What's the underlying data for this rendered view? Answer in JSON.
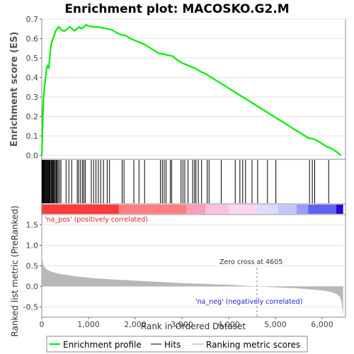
{
  "chart_data": {
    "type": "line",
    "title": "Enrichment plot: MACOSKO.G2.M",
    "xlabel": "Rank in Ordered Dataset",
    "xlim": [
      0,
      6500
    ],
    "x_ticks": [
      "0",
      "1,000",
      "2,000",
      "3,000",
      "4,000",
      "5,000",
      "6,000"
    ],
    "es_panel": {
      "ylabel": "Enrichment score (ES)",
      "ylim": [
        -0.02,
        0.7
      ],
      "y_ticks": [
        "0.0",
        "0.1",
        "0.2",
        "0.3",
        "0.4",
        "0.5",
        "0.6",
        "0.7"
      ],
      "series": [
        {
          "name": "Enrichment profile",
          "color": "#00ee00",
          "x": [
            0,
            20,
            40,
            60,
            80,
            100,
            120,
            150,
            170,
            190,
            210,
            240,
            270,
            300,
            330,
            360,
            400,
            450,
            500,
            550,
            600,
            650,
            700,
            750,
            800,
            850,
            900,
            950,
            1000,
            1100,
            1200,
            1300,
            1400,
            1500,
            1600,
            1700,
            1800,
            1900,
            2000,
            2100,
            2200,
            2300,
            2400,
            2500,
            2600,
            2700,
            2800,
            2900,
            3000,
            3100,
            3200,
            3300,
            3400,
            3500,
            3600,
            3800,
            4000,
            4200,
            4400,
            4600,
            4800,
            5000,
            5200,
            5400,
            5600,
            5700,
            5800,
            5900,
            6000,
            6100,
            6200,
            6300,
            6400
          ],
          "y": [
            0.0,
            0.18,
            0.3,
            0.36,
            0.4,
            0.44,
            0.46,
            0.45,
            0.5,
            0.55,
            0.58,
            0.6,
            0.62,
            0.64,
            0.65,
            0.66,
            0.65,
            0.64,
            0.64,
            0.65,
            0.66,
            0.65,
            0.64,
            0.65,
            0.66,
            0.65,
            0.66,
            0.67,
            0.665,
            0.66,
            0.66,
            0.655,
            0.65,
            0.645,
            0.63,
            0.62,
            0.615,
            0.6,
            0.59,
            0.58,
            0.57,
            0.555,
            0.54,
            0.525,
            0.52,
            0.515,
            0.51,
            0.49,
            0.475,
            0.465,
            0.455,
            0.445,
            0.43,
            0.42,
            0.405,
            0.375,
            0.345,
            0.315,
            0.285,
            0.255,
            0.225,
            0.195,
            0.165,
            0.135,
            0.105,
            0.09,
            0.085,
            0.075,
            0.06,
            0.045,
            0.035,
            0.02,
            0.0
          ]
        }
      ]
    },
    "hits_panel": {
      "legend_name": "Hits",
      "hit_ranks": [
        5,
        15,
        25,
        35,
        45,
        55,
        70,
        85,
        100,
        115,
        130,
        145,
        160,
        175,
        195,
        210,
        225,
        240,
        255,
        270,
        290,
        310,
        330,
        350,
        380,
        410,
        520,
        580,
        640,
        760,
        790,
        830,
        870,
        900,
        930,
        1060,
        1110,
        1160,
        1210,
        1260,
        1320,
        1400,
        1450,
        1720,
        1760,
        1970,
        2080,
        2200,
        2540,
        2580,
        2620,
        2660,
        2750,
        2780,
        2980,
        3020,
        3060,
        3130,
        3230,
        3270,
        3300,
        3350,
        3420,
        3540,
        3580,
        3840,
        4140,
        4240,
        4300,
        4360,
        4500,
        4620,
        4830,
        5010,
        5730,
        5790,
        5840,
        6140
      ]
    },
    "ranked_metric_panel": {
      "ylabel": "Ranked list metric (PreRanked)",
      "legend_name": "Ranking metric scores",
      "ylim": [
        -0.75,
        1.75
      ],
      "y_ticks": [
        "-0.5",
        "0.0",
        "0.5",
        "1.0",
        "1.5"
      ],
      "x": [
        0,
        5,
        20,
        50,
        100,
        200,
        400,
        700,
        1000,
        1500,
        2000,
        2500,
        3000,
        3500,
        4000,
        4605,
        5000,
        5500,
        5800,
        6000,
        6200,
        6300,
        6380,
        6420,
        6450
      ],
      "y": [
        1.7,
        0.75,
        0.6,
        0.48,
        0.42,
        0.36,
        0.3,
        0.25,
        0.21,
        0.17,
        0.14,
        0.11,
        0.08,
        0.06,
        0.04,
        0.0,
        -0.02,
        -0.05,
        -0.08,
        -0.1,
        -0.14,
        -0.18,
        -0.25,
        -0.4,
        -0.7
      ],
      "pos_label": "'na_pos' (positively correlated)",
      "neg_label": "'na_neg' (negatively correlated)",
      "zero_cross_label": "Zero cross at 4605",
      "zero_cross": 4605
    },
    "heatmap_band": {
      "segments": [
        {
          "from": 0,
          "to": 1650,
          "color": "#ff3b3b"
        },
        {
          "from": 1650,
          "to": 3100,
          "color": "#ff7f7f"
        },
        {
          "from": 3100,
          "to": 3500,
          "color": "#ff9fb5"
        },
        {
          "from": 3500,
          "to": 4000,
          "color": "#ffc0e0"
        },
        {
          "from": 4000,
          "to": 4600,
          "color": "#ffd5f0"
        },
        {
          "from": 4600,
          "to": 5050,
          "color": "#dcdcff"
        },
        {
          "from": 5050,
          "to": 5450,
          "color": "#c5c5ff"
        },
        {
          "from": 5450,
          "to": 5700,
          "color": "#9a9aff"
        },
        {
          "from": 5700,
          "to": 6300,
          "color": "#6060f5"
        },
        {
          "from": 6300,
          "to": 6450,
          "color": "#2a00d0"
        }
      ]
    },
    "legend": {
      "placement": "bottom",
      "items": [
        "Enrichment profile",
        "Hits",
        "Ranking metric scores"
      ]
    }
  }
}
